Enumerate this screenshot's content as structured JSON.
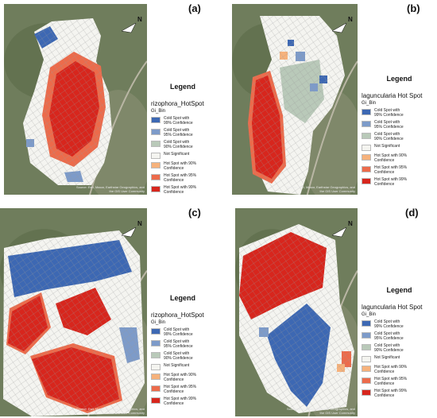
{
  "north_label": "N",
  "panels": [
    {
      "label": "(a)",
      "attribution": "Source: Esri, Maxar, Earthstar Geographics, and the GIS User Community",
      "legend": {
        "heading": "Legend",
        "title": "rizophora_HotSpot",
        "field": "Gi_Bin",
        "items": [
          {
            "label": "Cold Spot with 99% Confidence",
            "color": "#3d68b3"
          },
          {
            "label": "Cold Spot with 95% Confidence",
            "color": "#7d9bc9"
          },
          {
            "label": "Cold Spot with 90% Confidence",
            "color": "#b9c9b9"
          },
          {
            "label": "Not Significant",
            "color": "#f4f4f0"
          },
          {
            "label": "Hot Spot with 90% Confidence",
            "color": "#f6b27c"
          },
          {
            "label": "Hot Spot with 95% Confidence",
            "color": "#ec6b4b"
          },
          {
            "label": "Hot Spot with 99% Confidence",
            "color": "#d7261d"
          }
        ]
      }
    },
    {
      "label": "(b)",
      "attribution": "Source: Esri, Maxar, Earthstar Geographics, and the GIS User Community",
      "legend": {
        "heading": "Legend",
        "title": "laguncularia Hot Spot",
        "field": "Gi_Bin",
        "items": [
          {
            "label": "Cold Spot with 99% Confidence",
            "color": "#3d68b3"
          },
          {
            "label": "Cold Spot with 95% Confidence",
            "color": "#7d9bc9"
          },
          {
            "label": "Cold Spot with 90% Confidence",
            "color": "#b9c9b9"
          },
          {
            "label": "Not Significant",
            "color": "#f4f4f0"
          },
          {
            "label": "Hot Spot with 90% Confidence",
            "color": "#f6b27c"
          },
          {
            "label": "Hot Spot with 95% Confidence",
            "color": "#ec6b4b"
          },
          {
            "label": "Hot Spot with 99% Confidence",
            "color": "#d7261d"
          }
        ]
      }
    },
    {
      "label": "(c)",
      "attribution": "Source: Esri, Maxar, Earthstar Geographics, and the GIS User Community",
      "legend": {
        "heading": "Legend",
        "title": "rizophora_HotSpot",
        "field": "Gi_Bin",
        "items": [
          {
            "label": "Cold Spot with 99% Confidence",
            "color": "#3d68b3"
          },
          {
            "label": "Cold Spot with 95% Confidence",
            "color": "#7d9bc9"
          },
          {
            "label": "Cold Spot with 90% Confidence",
            "color": "#b9c9b9"
          },
          {
            "label": "Not Significant",
            "color": "#f4f4f0"
          },
          {
            "label": "Hot Spot with 90% Confidence",
            "color": "#f6b27c"
          },
          {
            "label": "Hot Spot with 95% Confidence",
            "color": "#ec6b4b"
          },
          {
            "label": "Hot Spot with 99% Confidence",
            "color": "#d7261d"
          }
        ]
      }
    },
    {
      "label": "(d)",
      "attribution": "Source: Esri, Maxar, Earthstar Geographics, and the GIS User Community",
      "legend": {
        "heading": "Legend",
        "title": "laguncularia Hot Spot",
        "field": "Gi_Bin",
        "items": [
          {
            "label": "Cold Spot with 99% Confidence",
            "color": "#3d68b3"
          },
          {
            "label": "Cold Spot with 95% Confidence",
            "color": "#7d9bc9"
          },
          {
            "label": "Cold Spot with 90% Confidence",
            "color": "#b9c9b9"
          },
          {
            "label": "Not Significant",
            "color": "#f4f4f0"
          },
          {
            "label": "Hot Spot with 90% Confidence",
            "color": "#f6b27c"
          },
          {
            "label": "Hot Spot with 95% Confidence",
            "color": "#ec6b4b"
          },
          {
            "label": "Hot Spot with 99% Confidence",
            "color": "#d7261d"
          }
        ]
      }
    }
  ]
}
